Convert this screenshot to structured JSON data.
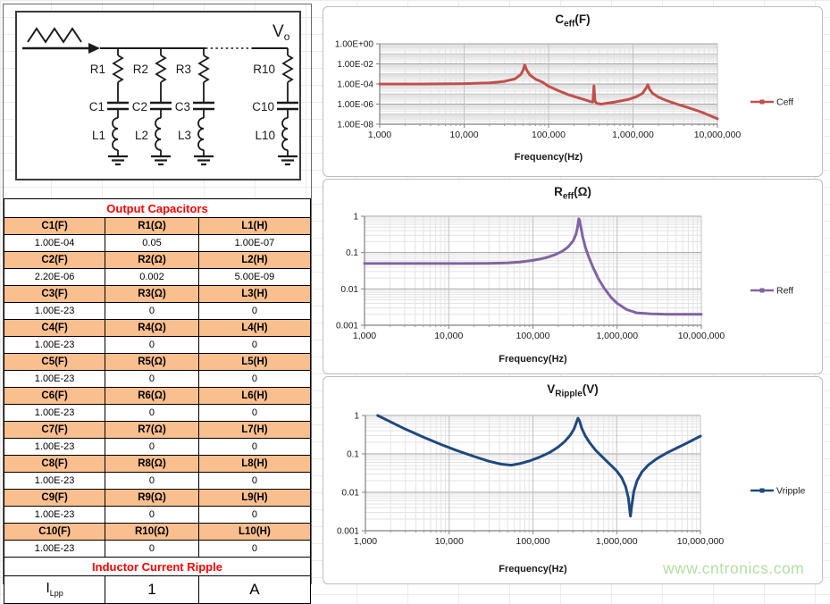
{
  "left_panel": {
    "circuit": {
      "v_out": {
        "main": "V",
        "sub": "o"
      },
      "branches": [
        {
          "r": "R1",
          "c": "C1",
          "l": "L1"
        },
        {
          "r": "R2",
          "c": "C2",
          "l": "L2"
        },
        {
          "r": "R3",
          "c": "C3",
          "l": "L3"
        },
        {
          "r": "R10",
          "c": "C10",
          "l": "L10"
        }
      ]
    },
    "table": {
      "title": "Output Capacitors",
      "groups": [
        {
          "headers": [
            "C1(F)",
            "R1(Ω)",
            "L1(H)"
          ],
          "values": [
            "1.00E-04",
            "0.05",
            "1.00E-07"
          ]
        },
        {
          "headers": [
            "C2(F)",
            "R2(Ω)",
            "L2(H)"
          ],
          "values": [
            "2.20E-06",
            "0.002",
            "5.00E-09"
          ]
        },
        {
          "headers": [
            "C3(F)",
            "R3(Ω)",
            "L3(H)"
          ],
          "values": [
            "1.00E-23",
            "0",
            "0"
          ]
        },
        {
          "headers": [
            "C4(F)",
            "R4(Ω)",
            "L4(H)"
          ],
          "values": [
            "1.00E-23",
            "0",
            "0"
          ]
        },
        {
          "headers": [
            "C5(F)",
            "R5(Ω)",
            "L5(H)"
          ],
          "values": [
            "1.00E-23",
            "0",
            "0"
          ]
        },
        {
          "headers": [
            "C6(F)",
            "R6(Ω)",
            "L6(H)"
          ],
          "values": [
            "1.00E-23",
            "0",
            "0"
          ]
        },
        {
          "headers": [
            "C7(F)",
            "R7(Ω)",
            "L7(H)"
          ],
          "values": [
            "1.00E-23",
            "0",
            "0"
          ]
        },
        {
          "headers": [
            "C8(F)",
            "R8(Ω)",
            "L8(H)"
          ],
          "values": [
            "1.00E-23",
            "0",
            "0"
          ]
        },
        {
          "headers": [
            "C9(F)",
            "R9(Ω)",
            "L9(H)"
          ],
          "values": [
            "1.00E-23",
            "0",
            "0"
          ]
        },
        {
          "headers": [
            "C10(F)",
            "R10(Ω)",
            "L10(H)"
          ],
          "values": [
            "1.00E-23",
            "0",
            "0"
          ]
        }
      ],
      "ripple_title": "Inductor Current Ripple",
      "ripple_row": {
        "symbol": "I",
        "symbol_sub": "Lpp",
        "value": "1",
        "unit": "A"
      }
    }
  },
  "chart_data": [
    {
      "type": "line",
      "title_main": "C",
      "title_sub": "eff",
      "title_unit": "(F)",
      "xlabel": "Frequency(Hz)",
      "legend": "Ceff",
      "color": "#C0504D",
      "x_scale": "log",
      "y_scale": "log",
      "xlim": [
        1000,
        10000000
      ],
      "ylim": [
        1e-08,
        1
      ],
      "grid": true,
      "legend_position": "right",
      "x_ticks": [
        {
          "label": "1,000",
          "value": 1000
        },
        {
          "label": "10,000",
          "value": 10000
        },
        {
          "label": "100,000",
          "value": 100000
        },
        {
          "label": "1,000,000",
          "value": 1000000
        },
        {
          "label": "10,000,000",
          "value": 10000000
        }
      ],
      "y_ticks": [
        {
          "label": "1.00E+00",
          "value": 1
        },
        {
          "label": "1.00E-02",
          "value": 0.01
        },
        {
          "label": "1.00E-04",
          "value": 0.0001
        },
        {
          "label": "1.00E-06",
          "value": 1e-06
        },
        {
          "label": "1.00E-08",
          "value": 1e-08
        }
      ],
      "series": [
        {
          "name": "Ceff",
          "points": [
            [
              1000,
              0.0001
            ],
            [
              3000,
              0.0001
            ],
            [
              7000,
              0.000104
            ],
            [
              10000,
              0.000108
            ],
            [
              20000,
              0.00013
            ],
            [
              30000,
              0.00018
            ],
            [
              40000,
              0.00032
            ],
            [
              47000,
              0.0009
            ],
            [
              50000,
              0.0025
            ],
            [
              52000,
              0.008
            ],
            [
              55000,
              0.0025
            ],
            [
              60000,
              0.0008
            ],
            [
              70000,
              0.0003
            ],
            [
              85000,
              0.00015
            ],
            [
              100000,
              6e-05
            ],
            [
              130000,
              2.2e-05
            ],
            [
              170000,
              9e-06
            ],
            [
              220000,
              4.5e-06
            ],
            [
              280000,
              2.4e-06
            ],
            [
              320000,
              1.7e-06
            ],
            [
              335000,
              1.6e-06
            ],
            [
              345000,
              6.5e-05
            ],
            [
              355000,
              2e-06
            ],
            [
              370000,
              1.2e-06
            ],
            [
              420000,
              1e-06
            ],
            [
              550000,
              1.4e-06
            ],
            [
              700000,
              2e-06
            ],
            [
              900000,
              3e-06
            ],
            [
              1100000,
              5.5e-06
            ],
            [
              1300000,
              1.2e-05
            ],
            [
              1430000,
              4e-05
            ],
            [
              1500000,
              8.5e-05
            ],
            [
              1570000,
              3e-05
            ],
            [
              1700000,
              1.2e-05
            ],
            [
              2000000,
              5e-06
            ],
            [
              2500000,
              2.2e-06
            ],
            [
              3200000,
              1.1e-06
            ],
            [
              4500000,
              4.5e-07
            ],
            [
              6500000,
              1.6e-07
            ],
            [
              10000000,
              3.5e-08
            ]
          ]
        }
      ]
    },
    {
      "type": "line",
      "title_main": "R",
      "title_sub": "eff",
      "title_unit": "(Ω)",
      "xlabel": "Frequency(Hz)",
      "legend": "Reff",
      "color": "#8064A2",
      "x_scale": "log",
      "y_scale": "log",
      "xlim": [
        1000,
        10000000
      ],
      "ylim": [
        0.001,
        1
      ],
      "grid": true,
      "legend_position": "right",
      "x_ticks": [
        {
          "label": "1,000",
          "value": 1000
        },
        {
          "label": "10,000",
          "value": 10000
        },
        {
          "label": "100,000",
          "value": 100000
        },
        {
          "label": "1,000,000",
          "value": 1000000
        },
        {
          "label": "10,000,000",
          "value": 10000000
        }
      ],
      "y_ticks": [
        {
          "label": "1",
          "value": 1
        },
        {
          "label": "0.1",
          "value": 0.1
        },
        {
          "label": "0.01",
          "value": 0.01
        },
        {
          "label": "0.001",
          "value": 0.001
        }
      ],
      "series": [
        {
          "name": "Reff",
          "points": [
            [
              1000,
              0.05
            ],
            [
              5000,
              0.05
            ],
            [
              15000,
              0.05
            ],
            [
              30000,
              0.0505
            ],
            [
              50000,
              0.052
            ],
            [
              70000,
              0.055
            ],
            [
              100000,
              0.061
            ],
            [
              140000,
              0.071
            ],
            [
              180000,
              0.086
            ],
            [
              220000,
              0.107
            ],
            [
              260000,
              0.14
            ],
            [
              300000,
              0.21
            ],
            [
              325000,
              0.32
            ],
            [
              340000,
              0.52
            ],
            [
              350000,
              0.85
            ],
            [
              358000,
              0.78
            ],
            [
              370000,
              0.5
            ],
            [
              390000,
              0.27
            ],
            [
              420000,
              0.14
            ],
            [
              460000,
              0.075
            ],
            [
              520000,
              0.038
            ],
            [
              600000,
              0.019
            ],
            [
              700000,
              0.0105
            ],
            [
              850000,
              0.0058
            ],
            [
              1000000,
              0.004
            ],
            [
              1300000,
              0.0027
            ],
            [
              1700000,
              0.0022
            ],
            [
              2500000,
              0.00205
            ],
            [
              4000000,
              0.002
            ],
            [
              10000000,
              0.002
            ]
          ]
        }
      ]
    },
    {
      "type": "line",
      "title_main": "V",
      "title_sub": "Ripple",
      "title_unit": "(V)",
      "xlabel": "Frequency(Hz)",
      "legend": "Vripple",
      "color": "#1F497D",
      "x_scale": "log",
      "y_scale": "log",
      "xlim": [
        1000,
        10000000
      ],
      "ylim": [
        0.001,
        1
      ],
      "grid": true,
      "legend_position": "right",
      "x_ticks": [
        {
          "label": "1,000",
          "value": 1000
        },
        {
          "label": "10,000",
          "value": 10000
        },
        {
          "label": "100,000",
          "value": 100000
        },
        {
          "label": "1,000,000",
          "value": 1000000
        },
        {
          "label": "10,000,000",
          "value": 10000000
        }
      ],
      "y_ticks": [
        {
          "label": "1",
          "value": 1
        },
        {
          "label": "0.1",
          "value": 0.1
        },
        {
          "label": "0.01",
          "value": 0.01
        },
        {
          "label": "0.001",
          "value": 0.001
        }
      ],
      "series": [
        {
          "name": "Vripple",
          "points": [
            [
              1400,
              1.0
            ],
            [
              2000,
              0.68
            ],
            [
              3000,
              0.44
            ],
            [
              5000,
              0.27
            ],
            [
              8000,
              0.175
            ],
            [
              12000,
              0.125
            ],
            [
              20000,
              0.085
            ],
            [
              30000,
              0.064
            ],
            [
              42000,
              0.054
            ],
            [
              55000,
              0.051
            ],
            [
              70000,
              0.056
            ],
            [
              90000,
              0.065
            ],
            [
              120000,
              0.082
            ],
            [
              160000,
              0.11
            ],
            [
              200000,
              0.15
            ],
            [
              240000,
              0.21
            ],
            [
              280000,
              0.31
            ],
            [
              310000,
              0.45
            ],
            [
              330000,
              0.65
            ],
            [
              345000,
              0.85
            ],
            [
              360000,
              0.72
            ],
            [
              380000,
              0.48
            ],
            [
              420000,
              0.3
            ],
            [
              480000,
              0.19
            ],
            [
              560000,
              0.125
            ],
            [
              680000,
              0.082
            ],
            [
              820000,
              0.055
            ],
            [
              1000000,
              0.036
            ],
            [
              1150000,
              0.024
            ],
            [
              1280000,
              0.014
            ],
            [
              1380000,
              0.007
            ],
            [
              1430000,
              0.0035
            ],
            [
              1460000,
              0.0024
            ],
            [
              1500000,
              0.004
            ],
            [
              1600000,
              0.0105
            ],
            [
              1750000,
              0.02
            ],
            [
              2000000,
              0.034
            ],
            [
              2400000,
              0.052
            ],
            [
              3000000,
              0.075
            ],
            [
              4000000,
              0.107
            ],
            [
              5500000,
              0.15
            ],
            [
              7500000,
              0.21
            ],
            [
              10000000,
              0.29
            ]
          ]
        }
      ]
    }
  ],
  "colors": {
    "table_header_bg": "#FABF8F",
    "table_title_red": "#FF0000",
    "ceff_line": "#C0504D",
    "reff_line": "#8064A2",
    "vripple_line": "#1F497D",
    "watermark_green": "#9fd88b"
  },
  "watermark": "www.cntronics.com"
}
